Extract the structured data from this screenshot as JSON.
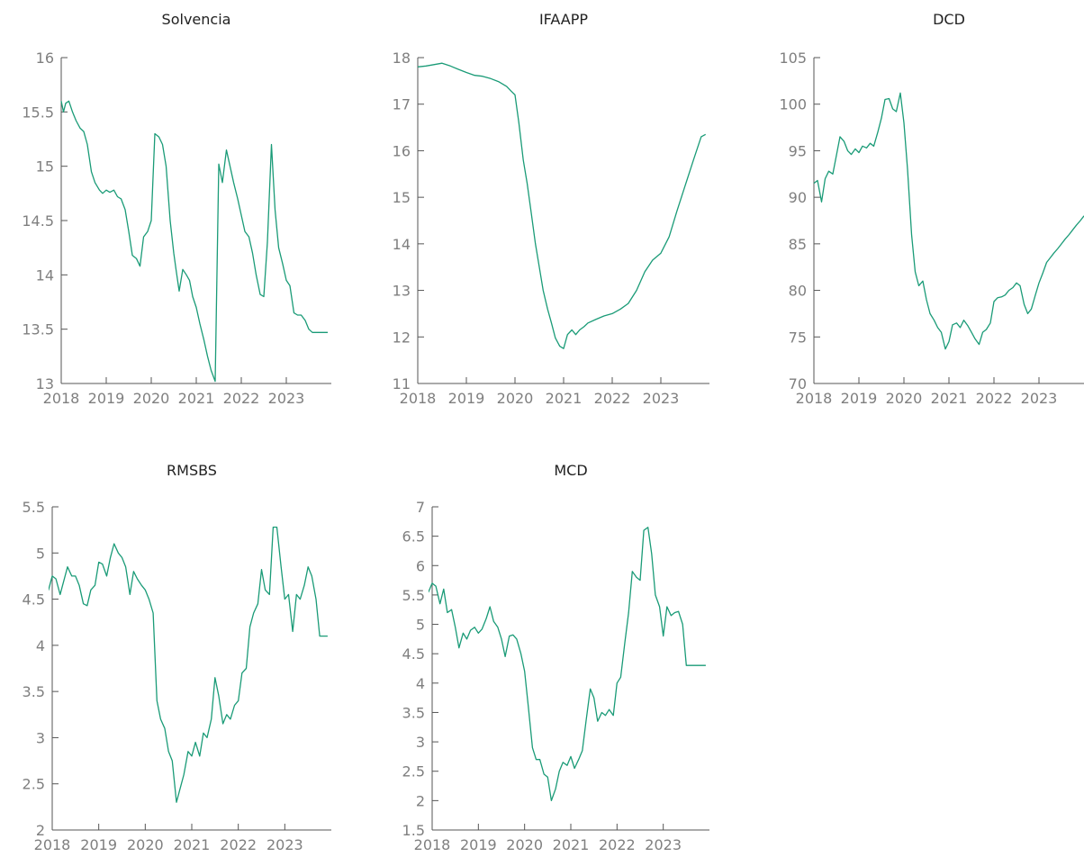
{
  "colors": {
    "series": "#1a9b77",
    "axis": "#555555",
    "tick_text": "#7f7f7f"
  },
  "chart_data": [
    {
      "type": "line",
      "title": "Solvencia",
      "xlabel": "",
      "ylabel": "",
      "xlim": [
        2018,
        2024
      ],
      "ylim": [
        13,
        16
      ],
      "yticks": [
        13,
        13.5,
        14,
        14.5,
        15,
        15.5,
        16
      ],
      "ytick_labels": [
        "13",
        "13.5",
        "14",
        "14.5",
        "15",
        "15.5",
        "16"
      ],
      "xticks": [
        2018,
        2019,
        2020,
        2021,
        2022,
        2023
      ],
      "xtick_labels": [
        "2018",
        "2019",
        "2020",
        "2021",
        "2022",
        "2023"
      ],
      "series": [
        {
          "x": [
            2018.0,
            2018.05,
            2018.1,
            2018.17,
            2018.25,
            2018.33,
            2018.42,
            2018.5,
            2018.58,
            2018.67,
            2018.75,
            2018.85,
            2018.92,
            2019.0,
            2019.08,
            2019.17,
            2019.25,
            2019.33,
            2019.42,
            2019.5,
            2019.58,
            2019.67,
            2019.75,
            2019.83,
            2019.92,
            2020.0,
            2020.08,
            2020.17,
            2020.25,
            2020.33,
            2020.42,
            2020.5,
            2020.55,
            2020.62,
            2020.7,
            2020.78,
            2020.85,
            2020.92,
            2021.0,
            2021.08,
            2021.17,
            2021.25,
            2021.33,
            2021.42,
            2021.5,
            2021.58,
            2021.67,
            2021.75,
            2021.83,
            2021.92,
            2022.0,
            2022.08,
            2022.17,
            2022.25,
            2022.33,
            2022.42,
            2022.5,
            2022.58,
            2022.67,
            2022.75,
            2022.83,
            2022.92,
            2023.0,
            2023.08,
            2023.17,
            2023.25,
            2023.33,
            2023.42,
            2023.5,
            2023.58,
            2023.67,
            2023.75,
            2023.83,
            2023.92
          ],
          "y": [
            15.6,
            15.5,
            15.58,
            15.6,
            15.5,
            15.42,
            15.35,
            15.32,
            15.2,
            14.95,
            14.85,
            14.78,
            14.75,
            14.78,
            14.76,
            14.78,
            14.72,
            14.7,
            14.6,
            14.4,
            14.18,
            14.15,
            14.08,
            14.35,
            14.4,
            14.5,
            15.3,
            15.27,
            15.2,
            15.0,
            14.5,
            14.2,
            14.05,
            13.85,
            14.05,
            14.0,
            13.95,
            13.8,
            13.7,
            13.55,
            13.4,
            13.25,
            13.12,
            13.02,
            15.02,
            14.85,
            15.15,
            15.0,
            14.85,
            14.7,
            14.55,
            14.4,
            14.35,
            14.2,
            14.0,
            13.82,
            13.8,
            14.3,
            15.2,
            14.6,
            14.25,
            14.1,
            13.95,
            13.9,
            13.65,
            13.63,
            13.63,
            13.58,
            13.5,
            13.47,
            13.47,
            13.47,
            13.47,
            13.47
          ]
        }
      ]
    },
    {
      "type": "line",
      "title": "IFAAPP",
      "xlabel": "",
      "ylabel": "",
      "xlim": [
        2018,
        2024
      ],
      "ylim": [
        11,
        18
      ],
      "yticks": [
        11,
        12,
        13,
        14,
        15,
        16,
        17,
        18
      ],
      "ytick_labels": [
        "11",
        "12",
        "13",
        "14",
        "15",
        "16",
        "17",
        "18"
      ],
      "xticks": [
        2018,
        2019,
        2020,
        2021,
        2022,
        2023
      ],
      "xtick_labels": [
        "2018",
        "2019",
        "2020",
        "2021",
        "2022",
        "2023"
      ],
      "series": [
        {
          "x": [
            2018.0,
            2018.17,
            2018.33,
            2018.5,
            2018.67,
            2018.83,
            2019.0,
            2019.17,
            2019.33,
            2019.5,
            2019.67,
            2019.83,
            2019.92,
            2020.0,
            2020.08,
            2020.17,
            2020.25,
            2020.33,
            2020.42,
            2020.5,
            2020.58,
            2020.67,
            2020.75,
            2020.83,
            2020.92,
            2021.0,
            2021.08,
            2021.17,
            2021.25,
            2021.33,
            2021.42,
            2021.5,
            2021.67,
            2021.83,
            2022.0,
            2022.17,
            2022.33,
            2022.5,
            2022.67,
            2022.83,
            2023.0,
            2023.17,
            2023.33,
            2023.5,
            2023.67,
            2023.83,
            2023.92
          ],
          "y": [
            17.8,
            17.82,
            17.85,
            17.88,
            17.82,
            17.75,
            17.68,
            17.62,
            17.6,
            17.55,
            17.48,
            17.38,
            17.28,
            17.2,
            16.6,
            15.8,
            15.3,
            14.7,
            14.0,
            13.5,
            13.0,
            12.6,
            12.3,
            11.98,
            11.8,
            11.75,
            12.05,
            12.15,
            12.05,
            12.15,
            12.22,
            12.3,
            12.38,
            12.45,
            12.5,
            12.6,
            12.72,
            13.0,
            13.4,
            13.65,
            13.8,
            14.15,
            14.7,
            15.25,
            15.8,
            16.3,
            16.35
          ]
        }
      ]
    },
    {
      "type": "line",
      "title": "DCD",
      "xlabel": "",
      "ylabel": "",
      "xlim": [
        2018,
        2024
      ],
      "ylim": [
        70,
        105
      ],
      "yticks": [
        70,
        75,
        80,
        85,
        90,
        95,
        100,
        105
      ],
      "ytick_labels": [
        "70",
        "75",
        "80",
        "85",
        "90",
        "95",
        "100",
        "105"
      ],
      "xticks": [
        2018,
        2019,
        2020,
        2021,
        2022,
        2023
      ],
      "xtick_labels": [
        "2018",
        "2019",
        "2020",
        "2021",
        "2022",
        "2023"
      ],
      "series": [
        {
          "x": [
            2018.0,
            2018.08,
            2018.17,
            2018.25,
            2018.33,
            2018.42,
            2018.5,
            2018.58,
            2018.67,
            2018.75,
            2018.83,
            2018.92,
            2019.0,
            2019.08,
            2019.17,
            2019.25,
            2019.33,
            2019.42,
            2019.5,
            2019.58,
            2019.67,
            2019.75,
            2019.83,
            2019.92,
            2020.0,
            2020.08,
            2020.17,
            2020.25,
            2020.33,
            2020.42,
            2020.5,
            2020.58,
            2020.67,
            2020.75,
            2020.83,
            2020.92,
            2021.0,
            2021.08,
            2021.17,
            2021.25,
            2021.33,
            2021.42,
            2021.5,
            2021.58,
            2021.67,
            2021.75,
            2021.83,
            2021.92,
            2022.0,
            2022.08,
            2022.17,
            2022.25,
            2022.33,
            2022.42,
            2022.5,
            2022.58,
            2022.67,
            2022.75,
            2022.83,
            2022.92,
            2023.0,
            2023.08,
            2023.17,
            2023.25,
            2023.33,
            2023.42,
            2023.5,
            2023.58,
            2023.67,
            2023.75,
            2023.83,
            2023.92,
            2024.0
          ],
          "y": [
            91.5,
            91.8,
            89.5,
            92.0,
            92.8,
            92.5,
            94.5,
            96.5,
            96.0,
            95.0,
            94.6,
            95.2,
            94.8,
            95.5,
            95.3,
            95.8,
            95.5,
            97.0,
            98.5,
            100.5,
            100.6,
            99.5,
            99.2,
            101.2,
            98.0,
            93.0,
            86.0,
            82.0,
            80.5,
            81.0,
            79.0,
            77.5,
            76.8,
            76.0,
            75.5,
            73.7,
            74.5,
            76.3,
            76.5,
            76.0,
            76.8,
            76.2,
            75.5,
            74.8,
            74.2,
            75.5,
            75.8,
            76.5,
            78.8,
            79.2,
            79.3,
            79.5,
            80.0,
            80.3,
            80.8,
            80.5,
            78.5,
            77.5,
            78.0,
            79.5,
            80.8,
            81.8,
            83.0,
            83.5,
            84.0,
            84.5,
            85.0,
            85.5,
            86.0,
            86.5,
            87.0,
            87.5,
            88.0
          ]
        }
      ]
    },
    {
      "type": "line",
      "title": "RMSBS",
      "xlabel": "",
      "ylabel": "",
      "xlim": [
        2018,
        2024
      ],
      "ylim": [
        2,
        5.5
      ],
      "yticks": [
        2,
        2.5,
        3,
        3.5,
        4,
        4.5,
        5,
        5.5
      ],
      "ytick_labels": [
        "2",
        "2.5",
        "3",
        "3.5",
        "4",
        "4.5",
        "5",
        "5.5"
      ],
      "xticks": [
        2018,
        2019,
        2020,
        2021,
        2022,
        2023
      ],
      "xtick_labels": [
        "2018",
        "2019",
        "2020",
        "2021",
        "2022",
        "2023"
      ],
      "series": [
        {
          "x": [
            2017.75,
            2017.83,
            2017.92,
            2018.0,
            2018.08,
            2018.17,
            2018.25,
            2018.33,
            2018.42,
            2018.5,
            2018.58,
            2018.67,
            2018.75,
            2018.83,
            2018.92,
            2019.0,
            2019.08,
            2019.17,
            2019.25,
            2019.33,
            2019.42,
            2019.5,
            2019.58,
            2019.67,
            2019.75,
            2019.83,
            2019.92,
            2020.0,
            2020.08,
            2020.17,
            2020.25,
            2020.33,
            2020.42,
            2020.5,
            2020.58,
            2020.67,
            2020.75,
            2020.83,
            2020.92,
            2021.0,
            2021.08,
            2021.17,
            2021.25,
            2021.33,
            2021.42,
            2021.5,
            2021.58,
            2021.67,
            2021.75,
            2021.83,
            2021.92,
            2022.0,
            2022.08,
            2022.17,
            2022.25,
            2022.33,
            2022.42,
            2022.5,
            2022.58,
            2022.67,
            2022.75,
            2022.83,
            2022.92,
            2023.0,
            2023.08,
            2023.17,
            2023.25,
            2023.33,
            2023.42,
            2023.5,
            2023.58,
            2023.67,
            2023.75,
            2023.83,
            2023.92
          ],
          "y": [
            4.3,
            4.55,
            4.6,
            4.75,
            4.72,
            4.55,
            4.7,
            4.85,
            4.75,
            4.75,
            4.65,
            4.45,
            4.43,
            4.6,
            4.65,
            4.9,
            4.88,
            4.75,
            4.95,
            5.1,
            5.0,
            4.95,
            4.85,
            4.55,
            4.8,
            4.72,
            4.65,
            4.6,
            4.5,
            4.35,
            3.4,
            3.2,
            3.1,
            2.85,
            2.75,
            2.3,
            2.45,
            2.6,
            2.85,
            2.8,
            2.95,
            2.8,
            3.05,
            3.0,
            3.2,
            3.65,
            3.45,
            3.15,
            3.25,
            3.2,
            3.35,
            3.4,
            3.7,
            3.75,
            4.2,
            4.35,
            4.45,
            4.82,
            4.6,
            4.55,
            5.28,
            5.28,
            4.85,
            4.5,
            4.55,
            4.15,
            4.55,
            4.5,
            4.65,
            4.85,
            4.75,
            4.5,
            4.1,
            4.1,
            4.1
          ]
        }
      ]
    },
    {
      "type": "line",
      "title": "MCD",
      "xlabel": "",
      "ylabel": "",
      "xlim": [
        2018,
        2024
      ],
      "ylim": [
        1.5,
        7
      ],
      "yticks": [
        1.5,
        2,
        2.5,
        3,
        3.5,
        4,
        4.5,
        5,
        5.5,
        6,
        6.5,
        7
      ],
      "ytick_labels": [
        "1.5",
        "2",
        "2.5",
        "3",
        "3.5",
        "4",
        "4.5",
        "5",
        "5.5",
        "6",
        "6.5",
        "7"
      ],
      "xticks": [
        2018,
        2019,
        2020,
        2021,
        2022,
        2023
      ],
      "xtick_labels": [
        "2018",
        "2019",
        "2020",
        "2021",
        "2022",
        "2023"
      ],
      "series": [
        {
          "x": [
            2017.75,
            2017.83,
            2017.92,
            2018.0,
            2018.08,
            2018.17,
            2018.25,
            2018.33,
            2018.42,
            2018.5,
            2018.58,
            2018.67,
            2018.75,
            2018.83,
            2018.92,
            2019.0,
            2019.08,
            2019.17,
            2019.25,
            2019.33,
            2019.42,
            2019.5,
            2019.58,
            2019.67,
            2019.75,
            2019.83,
            2019.92,
            2020.0,
            2020.08,
            2020.17,
            2020.25,
            2020.33,
            2020.42,
            2020.5,
            2020.58,
            2020.67,
            2020.75,
            2020.83,
            2020.92,
            2021.0,
            2021.08,
            2021.17,
            2021.25,
            2021.33,
            2021.42,
            2021.5,
            2021.58,
            2021.67,
            2021.75,
            2021.83,
            2021.92,
            2022.0,
            2022.08,
            2022.17,
            2022.25,
            2022.33,
            2022.42,
            2022.5,
            2022.58,
            2022.67,
            2022.75,
            2022.83,
            2022.92,
            2023.0,
            2023.08,
            2023.17,
            2023.25,
            2023.33,
            2023.42,
            2023.5,
            2023.58,
            2023.67,
            2023.75,
            2023.83,
            2023.92
          ],
          "y": [
            5.45,
            5.5,
            5.55,
            5.7,
            5.65,
            5.35,
            5.6,
            5.2,
            5.25,
            4.95,
            4.6,
            4.85,
            4.75,
            4.9,
            4.95,
            4.85,
            4.92,
            5.1,
            5.3,
            5.05,
            4.95,
            4.75,
            4.45,
            4.8,
            4.82,
            4.75,
            4.5,
            4.2,
            3.6,
            2.9,
            2.7,
            2.7,
            2.45,
            2.4,
            2.0,
            2.2,
            2.5,
            2.65,
            2.6,
            2.75,
            2.55,
            2.7,
            2.85,
            3.35,
            3.9,
            3.75,
            3.35,
            3.5,
            3.45,
            3.55,
            3.45,
            4.0,
            4.1,
            4.7,
            5.2,
            5.9,
            5.8,
            5.75,
            6.6,
            6.65,
            6.2,
            5.5,
            5.3,
            4.8,
            5.3,
            5.15,
            5.2,
            5.22,
            5.0,
            4.3,
            4.3,
            4.3,
            4.3,
            4.3,
            4.3
          ]
        }
      ]
    }
  ]
}
